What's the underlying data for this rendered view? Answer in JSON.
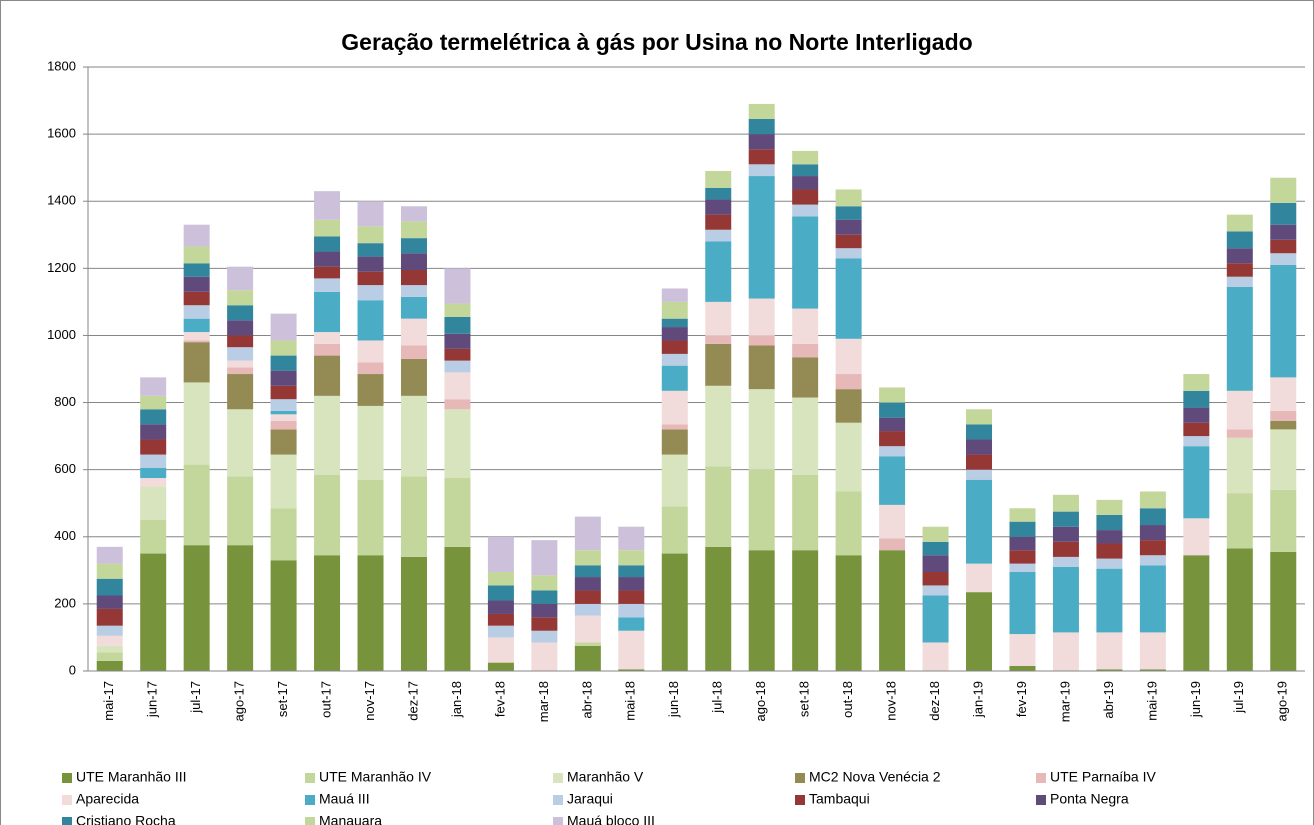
{
  "chart_data": {
    "type": "stacked_bar",
    "title": "Geração termelétrica à gás por Usina no Norte Interligado",
    "categories": [
      "mai-17",
      "jun-17",
      "jul-17",
      "ago-17",
      "set-17",
      "out-17",
      "nov-17",
      "dez-17",
      "jan-18",
      "fev-18",
      "mar-18",
      "abr-18",
      "mai-18",
      "jun-18",
      "jul-18",
      "ago-18",
      "set-18",
      "out-18",
      "nov-18",
      "dez-18",
      "jan-19",
      "fev-19",
      "mar-19",
      "abr-19",
      "mai-19",
      "jun-19",
      "jul-19",
      "ago-19"
    ],
    "series": [
      {
        "name": "UTE Maranhão III",
        "color": "#77933c",
        "values": [
          30,
          350,
          375,
          375,
          330,
          345,
          345,
          340,
          370,
          25,
          0,
          75,
          5,
          350,
          370,
          360,
          360,
          345,
          360,
          0,
          235,
          15,
          0,
          5,
          5,
          345,
          365,
          355
        ]
      },
      {
        "name": "UTE Maranhão IV",
        "color": "#c3d69b",
        "values": [
          25,
          100,
          240,
          205,
          155,
          240,
          225,
          240,
          205,
          0,
          0,
          10,
          0,
          140,
          240,
          240,
          225,
          190,
          0,
          0,
          0,
          0,
          0,
          0,
          0,
          0,
          165,
          185
        ]
      },
      {
        "name": "Maranhão V",
        "color": "#d7e4bd",
        "values": [
          20,
          100,
          245,
          200,
          160,
          235,
          220,
          240,
          205,
          0,
          0,
          0,
          0,
          155,
          240,
          240,
          230,
          205,
          0,
          0,
          0,
          0,
          0,
          0,
          0,
          0,
          165,
          180
        ]
      },
      {
        "name": "MC2 Nova Venécia 2",
        "color": "#948a54",
        "values": [
          0,
          0,
          120,
          105,
          75,
          120,
          95,
          110,
          0,
          0,
          0,
          0,
          0,
          75,
          125,
          130,
          120,
          100,
          0,
          0,
          0,
          0,
          0,
          0,
          0,
          0,
          0,
          25
        ]
      },
      {
        "name": "UTE Parnaíba IV",
        "color": "#e6b9b8",
        "values": [
          0,
          0,
          5,
          20,
          25,
          35,
          35,
          40,
          30,
          0,
          0,
          0,
          0,
          15,
          25,
          30,
          40,
          45,
          35,
          0,
          0,
          0,
          0,
          0,
          0,
          0,
          25,
          30
        ]
      },
      {
        "name": "Aparecida",
        "color": "#f2dcdb",
        "values": [
          30,
          25,
          25,
          20,
          20,
          35,
          65,
          80,
          80,
          75,
          85,
          80,
          115,
          100,
          100,
          110,
          105,
          105,
          100,
          85,
          85,
          95,
          115,
          110,
          110,
          110,
          115,
          100
        ]
      },
      {
        "name": "Mauá III",
        "color": "#4bacc6",
        "values": [
          0,
          30,
          40,
          0,
          10,
          120,
          120,
          65,
          0,
          0,
          0,
          0,
          40,
          75,
          180,
          365,
          275,
          240,
          145,
          140,
          250,
          185,
          195,
          190,
          200,
          215,
          310,
          335
        ]
      },
      {
        "name": "Jaraqui",
        "color": "#b9cde5",
        "values": [
          30,
          40,
          40,
          40,
          35,
          40,
          45,
          35,
          35,
          35,
          35,
          35,
          40,
          35,
          35,
          35,
          35,
          30,
          30,
          30,
          30,
          25,
          30,
          30,
          30,
          30,
          30,
          35
        ]
      },
      {
        "name": "Tambaqui",
        "color": "#953735",
        "values": [
          50,
          45,
          40,
          35,
          40,
          35,
          40,
          45,
          35,
          35,
          40,
          40,
          40,
          40,
          45,
          45,
          45,
          40,
          45,
          40,
          45,
          40,
          45,
          45,
          45,
          40,
          40,
          40
        ]
      },
      {
        "name": "Ponta Negra",
        "color": "#604a7b",
        "values": [
          40,
          45,
          45,
          45,
          45,
          45,
          45,
          50,
          45,
          40,
          40,
          40,
          40,
          40,
          45,
          45,
          40,
          45,
          40,
          50,
          45,
          40,
          45,
          40,
          45,
          45,
          45,
          45
        ]
      },
      {
        "name": "Cristiano Rocha",
        "color": "#31859c",
        "values": [
          50,
          45,
          40,
          45,
          45,
          45,
          40,
          45,
          50,
          45,
          40,
          35,
          35,
          25,
          35,
          45,
          35,
          40,
          45,
          40,
          45,
          45,
          45,
          45,
          50,
          50,
          50,
          65
        ]
      },
      {
        "name": "Manauara",
        "color": "#c4d79b",
        "values": [
          45,
          40,
          50,
          45,
          45,
          50,
          50,
          50,
          40,
          40,
          45,
          45,
          45,
          50,
          50,
          45,
          40,
          50,
          45,
          45,
          45,
          40,
          50,
          45,
          50,
          50,
          50,
          75
        ]
      },
      {
        "name": "Mauá bloco III",
        "color": "#ccc0da",
        "values": [
          50,
          55,
          65,
          70,
          80,
          85,
          75,
          45,
          105,
          105,
          105,
          100,
          70,
          40,
          0,
          0,
          0,
          0,
          0,
          0,
          0,
          0,
          0,
          0,
          0,
          0,
          0,
          0
        ]
      }
    ],
    "ylim": [
      0,
      1800
    ],
    "yticks": [
      0,
      200,
      400,
      600,
      800,
      1000,
      1200,
      1400,
      1600,
      1800
    ],
    "grid": true,
    "legend": "bottom"
  }
}
